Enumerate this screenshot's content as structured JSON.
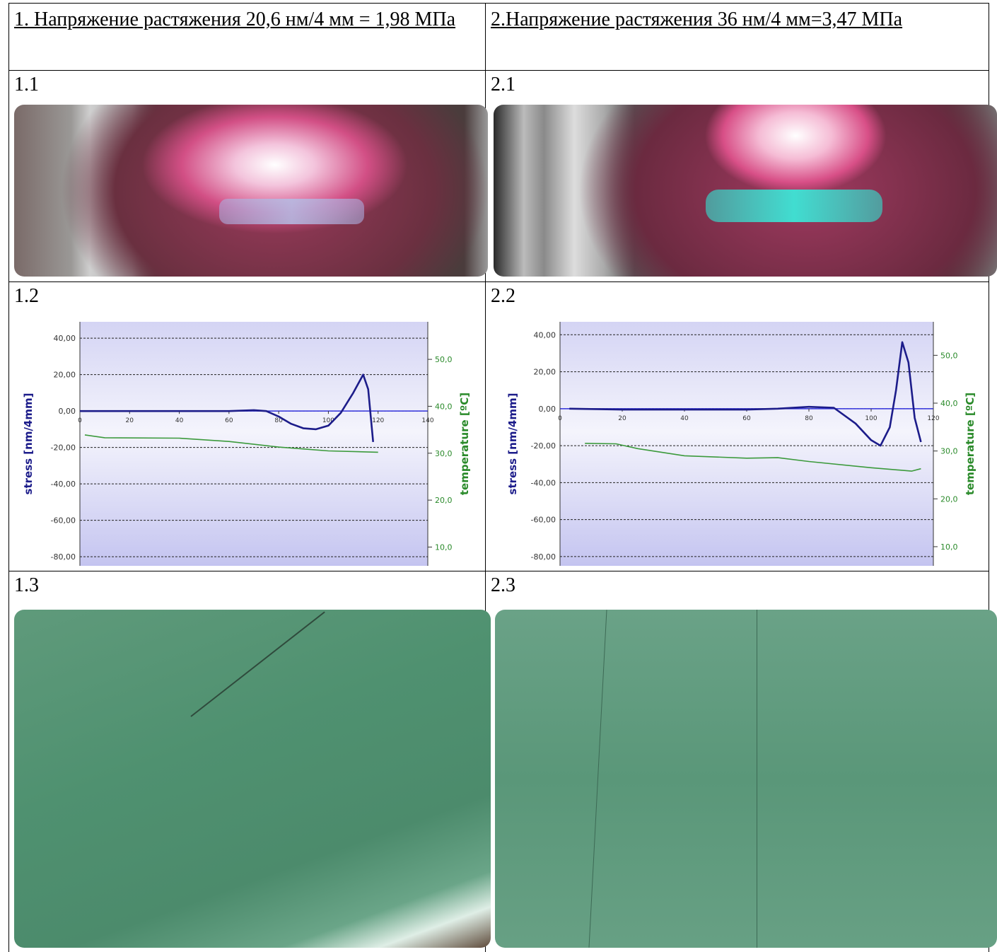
{
  "table": {
    "header": [
      "1. Напряжение растяжения  20,6 нм/4 мм = 1,98 МПа",
      "2.Напряжение растяжения 36 нм/4 мм=3,47 МПа"
    ],
    "labels": [
      [
        "1.1",
        "2.1"
      ],
      [
        "1.2",
        "2.2"
      ],
      [
        "1.3",
        "2.3"
      ]
    ]
  },
  "chart_data": [
    {
      "type": "line",
      "ylabel": "stress [nm/4mm]",
      "y2label": "temperature [ºC]",
      "xlim": [
        0,
        140
      ],
      "xticks": [
        0,
        20,
        40,
        60,
        80,
        100,
        120,
        140
      ],
      "ylim": [
        -85,
        49
      ],
      "yticks": [
        {
          "value": 40,
          "label": "40,00"
        },
        {
          "value": 20,
          "label": "20,00"
        },
        {
          "value": 0,
          "label": "0,00"
        },
        {
          "value": -20,
          "label": "-20,00"
        },
        {
          "value": -40,
          "label": "-40,00"
        },
        {
          "value": -60,
          "label": "-60,00"
        },
        {
          "value": -80,
          "label": "-80,00"
        }
      ],
      "y2lim": [
        6,
        58
      ],
      "y2ticks": [
        {
          "value": 50,
          "label": "50,0"
        },
        {
          "value": 40,
          "label": "40,0"
        },
        {
          "value": 30,
          "label": "30,0"
        },
        {
          "value": 20,
          "label": "20,0"
        },
        {
          "value": 10,
          "label": "10,0"
        }
      ],
      "grid": true,
      "series": [
        {
          "color": "#1c1c8a",
          "x": [
            0,
            10,
            20,
            30,
            40,
            50,
            60,
            70,
            75,
            80,
            85,
            90,
            95,
            100,
            105,
            110,
            114,
            116,
            118
          ],
          "values": [
            0,
            0,
            0,
            0,
            0,
            0,
            0,
            0.5,
            0,
            -3,
            -7,
            -9.5,
            -10,
            -8,
            -1,
            10,
            20,
            12,
            -17
          ]
        },
        {
          "color": "#3c9a3c",
          "axis": "y2",
          "x": [
            2,
            10,
            40,
            60,
            80,
            100,
            120
          ],
          "values": [
            33.9,
            33.3,
            33.2,
            32.5,
            31.3,
            30.5,
            30.2
          ]
        }
      ]
    },
    {
      "type": "line",
      "ylabel": "stress [nm/4mm]",
      "y2label": "temperature [ºC]",
      "xlim": [
        0,
        120
      ],
      "xticks": [
        0,
        20,
        40,
        60,
        80,
        100,
        120
      ],
      "ylim": [
        -85,
        47
      ],
      "yticks": [
        {
          "value": 40,
          "label": "40,00"
        },
        {
          "value": 20,
          "label": "20,00"
        },
        {
          "value": 0,
          "label": "0,00"
        },
        {
          "value": -20,
          "label": "-20,00"
        },
        {
          "value": -40,
          "label": "-40,00"
        },
        {
          "value": -60,
          "label": "-60,00"
        },
        {
          "value": -80,
          "label": "-80,00"
        }
      ],
      "y2lim": [
        6,
        57
      ],
      "y2ticks": [
        {
          "value": 50,
          "label": "50,0"
        },
        {
          "value": 40,
          "label": "40,0"
        },
        {
          "value": 30,
          "label": "30,0"
        },
        {
          "value": 20,
          "label": "20,0"
        },
        {
          "value": 10,
          "label": "10,0"
        }
      ],
      "grid": true,
      "series": [
        {
          "color": "#1c1c8a",
          "x": [
            3,
            20,
            40,
            60,
            70,
            80,
            88,
            95,
            100,
            103,
            106,
            108,
            110,
            112,
            114,
            116
          ],
          "values": [
            0,
            -0.5,
            -0.5,
            -0.5,
            0,
            1,
            0.5,
            -8,
            -17,
            -20,
            -10,
            10,
            36,
            25,
            -5,
            -18
          ]
        },
        {
          "color": "#3c9a3c",
          "axis": "y2",
          "x": [
            8,
            18,
            25,
            40,
            60,
            70,
            80,
            100,
            113,
            116
          ],
          "values": [
            31.6,
            31.5,
            30.5,
            29,
            28.5,
            28.6,
            27.8,
            26.5,
            25.8,
            26.3
          ]
        }
      ]
    }
  ]
}
